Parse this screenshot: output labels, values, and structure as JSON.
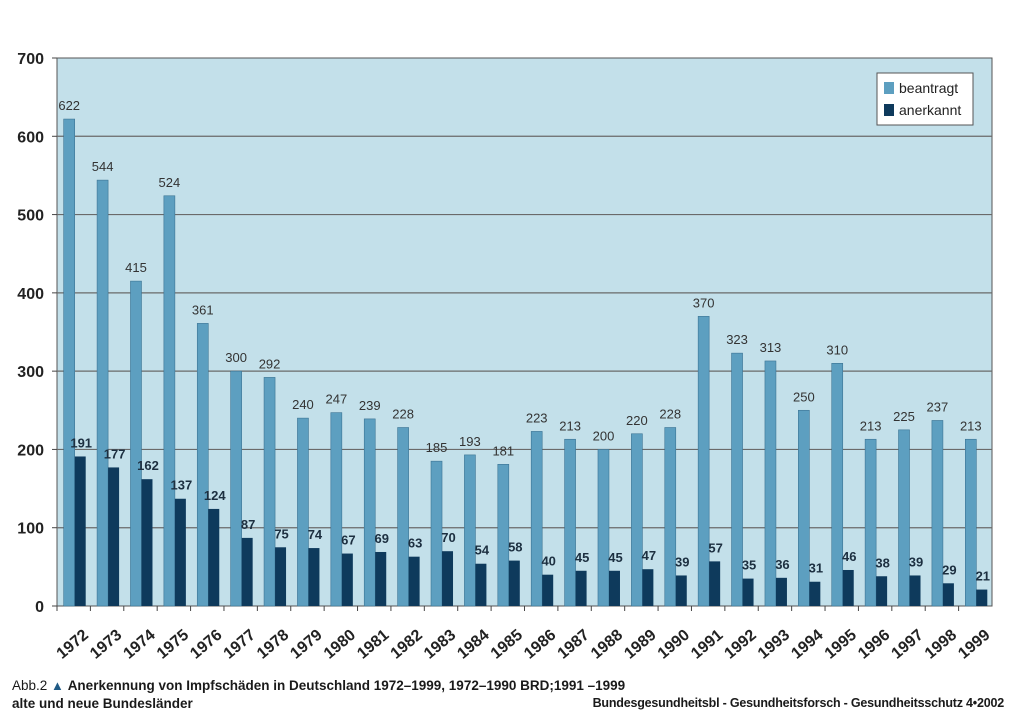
{
  "chart_data": {
    "type": "bar",
    "categories": [
      "1972",
      "1973",
      "1974",
      "1975",
      "1976",
      "1977",
      "1978",
      "1979",
      "1980",
      "1981",
      "1982",
      "1983",
      "1984",
      "1985",
      "1986",
      "1987",
      "1988",
      "1989",
      "1990",
      "1991",
      "1992",
      "1993",
      "1994",
      "1995",
      "1996",
      "1997",
      "1998",
      "1999"
    ],
    "series": [
      {
        "name": "beantragt",
        "color": "#5d9fc0",
        "values": [
          622,
          544,
          415,
          524,
          361,
          300,
          292,
          240,
          247,
          239,
          228,
          185,
          193,
          181,
          223,
          213,
          200,
          220,
          228,
          370,
          323,
          313,
          250,
          310,
          213,
          225,
          237,
          213
        ]
      },
      {
        "name": "anerkannt",
        "color": "#0e3a5c",
        "values": [
          191,
          177,
          162,
          137,
          124,
          87,
          75,
          74,
          67,
          69,
          63,
          70,
          54,
          58,
          40,
          45,
          45,
          47,
          39,
          57,
          35,
          36,
          31,
          46,
          38,
          39,
          29,
          21
        ]
      }
    ],
    "ylim": [
      0,
      700
    ],
    "yticks": [
      "0",
      "100",
      "200",
      "300",
      "400",
      "500",
      "600",
      "700"
    ],
    "grid": true,
    "legend_position": "top-right",
    "plot_background": "#c3e0ea"
  },
  "caption": {
    "figure_label": "Abb.2",
    "title_line1": "Anerkennung von Impfschäden in Deutschland 1972–1999, 1972–1990 BRD;1991 –1999",
    "title_line2": "alte und neue Bundesländer"
  },
  "source": "Bundesgesundheitsbl - Gesundheitsforsch - Gesundheitsschutz 4•2002"
}
